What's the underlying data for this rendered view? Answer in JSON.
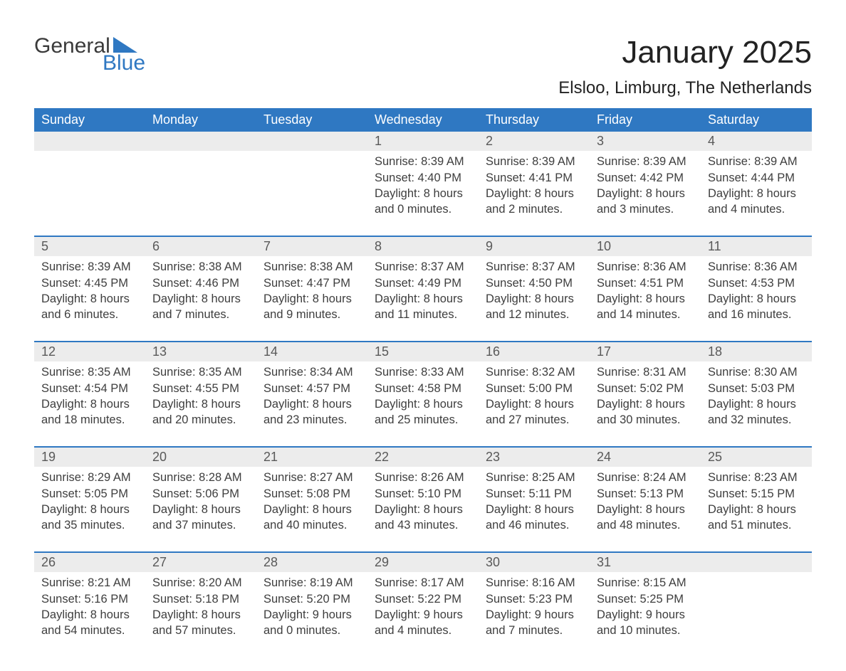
{
  "logo": {
    "word1": "General",
    "word2": "Blue"
  },
  "title": "January 2025",
  "location": "Elsloo, Limburg, The Netherlands",
  "colors": {
    "header_bg": "#2f78c2",
    "header_text": "#ffffff",
    "daynum_bg": "#ececec",
    "daynum_border": "#2f78c2",
    "daynum_text": "#595959",
    "body_text": "#3e3e3e",
    "logo_gray": "#3a3a3a",
    "logo_blue": "#2f78c2",
    "page_bg": "#ffffff"
  },
  "weekdays": [
    "Sunday",
    "Monday",
    "Tuesday",
    "Wednesday",
    "Thursday",
    "Friday",
    "Saturday"
  ],
  "weeks": [
    [
      {
        "n": "",
        "sunrise": "",
        "sunset": "",
        "daylight": ""
      },
      {
        "n": "",
        "sunrise": "",
        "sunset": "",
        "daylight": ""
      },
      {
        "n": "",
        "sunrise": "",
        "sunset": "",
        "daylight": ""
      },
      {
        "n": "1",
        "sunrise": "Sunrise: 8:39 AM",
        "sunset": "Sunset: 4:40 PM",
        "daylight": "Daylight: 8 hours and 0 minutes."
      },
      {
        "n": "2",
        "sunrise": "Sunrise: 8:39 AM",
        "sunset": "Sunset: 4:41 PM",
        "daylight": "Daylight: 8 hours and 2 minutes."
      },
      {
        "n": "3",
        "sunrise": "Sunrise: 8:39 AM",
        "sunset": "Sunset: 4:42 PM",
        "daylight": "Daylight: 8 hours and 3 minutes."
      },
      {
        "n": "4",
        "sunrise": "Sunrise: 8:39 AM",
        "sunset": "Sunset: 4:44 PM",
        "daylight": "Daylight: 8 hours and 4 minutes."
      }
    ],
    [
      {
        "n": "5",
        "sunrise": "Sunrise: 8:39 AM",
        "sunset": "Sunset: 4:45 PM",
        "daylight": "Daylight: 8 hours and 6 minutes."
      },
      {
        "n": "6",
        "sunrise": "Sunrise: 8:38 AM",
        "sunset": "Sunset: 4:46 PM",
        "daylight": "Daylight: 8 hours and 7 minutes."
      },
      {
        "n": "7",
        "sunrise": "Sunrise: 8:38 AM",
        "sunset": "Sunset: 4:47 PM",
        "daylight": "Daylight: 8 hours and 9 minutes."
      },
      {
        "n": "8",
        "sunrise": "Sunrise: 8:37 AM",
        "sunset": "Sunset: 4:49 PM",
        "daylight": "Daylight: 8 hours and 11 minutes."
      },
      {
        "n": "9",
        "sunrise": "Sunrise: 8:37 AM",
        "sunset": "Sunset: 4:50 PM",
        "daylight": "Daylight: 8 hours and 12 minutes."
      },
      {
        "n": "10",
        "sunrise": "Sunrise: 8:36 AM",
        "sunset": "Sunset: 4:51 PM",
        "daylight": "Daylight: 8 hours and 14 minutes."
      },
      {
        "n": "11",
        "sunrise": "Sunrise: 8:36 AM",
        "sunset": "Sunset: 4:53 PM",
        "daylight": "Daylight: 8 hours and 16 minutes."
      }
    ],
    [
      {
        "n": "12",
        "sunrise": "Sunrise: 8:35 AM",
        "sunset": "Sunset: 4:54 PM",
        "daylight": "Daylight: 8 hours and 18 minutes."
      },
      {
        "n": "13",
        "sunrise": "Sunrise: 8:35 AM",
        "sunset": "Sunset: 4:55 PM",
        "daylight": "Daylight: 8 hours and 20 minutes."
      },
      {
        "n": "14",
        "sunrise": "Sunrise: 8:34 AM",
        "sunset": "Sunset: 4:57 PM",
        "daylight": "Daylight: 8 hours and 23 minutes."
      },
      {
        "n": "15",
        "sunrise": "Sunrise: 8:33 AM",
        "sunset": "Sunset: 4:58 PM",
        "daylight": "Daylight: 8 hours and 25 minutes."
      },
      {
        "n": "16",
        "sunrise": "Sunrise: 8:32 AM",
        "sunset": "Sunset: 5:00 PM",
        "daylight": "Daylight: 8 hours and 27 minutes."
      },
      {
        "n": "17",
        "sunrise": "Sunrise: 8:31 AM",
        "sunset": "Sunset: 5:02 PM",
        "daylight": "Daylight: 8 hours and 30 minutes."
      },
      {
        "n": "18",
        "sunrise": "Sunrise: 8:30 AM",
        "sunset": "Sunset: 5:03 PM",
        "daylight": "Daylight: 8 hours and 32 minutes."
      }
    ],
    [
      {
        "n": "19",
        "sunrise": "Sunrise: 8:29 AM",
        "sunset": "Sunset: 5:05 PM",
        "daylight": "Daylight: 8 hours and 35 minutes."
      },
      {
        "n": "20",
        "sunrise": "Sunrise: 8:28 AM",
        "sunset": "Sunset: 5:06 PM",
        "daylight": "Daylight: 8 hours and 37 minutes."
      },
      {
        "n": "21",
        "sunrise": "Sunrise: 8:27 AM",
        "sunset": "Sunset: 5:08 PM",
        "daylight": "Daylight: 8 hours and 40 minutes."
      },
      {
        "n": "22",
        "sunrise": "Sunrise: 8:26 AM",
        "sunset": "Sunset: 5:10 PM",
        "daylight": "Daylight: 8 hours and 43 minutes."
      },
      {
        "n": "23",
        "sunrise": "Sunrise: 8:25 AM",
        "sunset": "Sunset: 5:11 PM",
        "daylight": "Daylight: 8 hours and 46 minutes."
      },
      {
        "n": "24",
        "sunrise": "Sunrise: 8:24 AM",
        "sunset": "Sunset: 5:13 PM",
        "daylight": "Daylight: 8 hours and 48 minutes."
      },
      {
        "n": "25",
        "sunrise": "Sunrise: 8:23 AM",
        "sunset": "Sunset: 5:15 PM",
        "daylight": "Daylight: 8 hours and 51 minutes."
      }
    ],
    [
      {
        "n": "26",
        "sunrise": "Sunrise: 8:21 AM",
        "sunset": "Sunset: 5:16 PM",
        "daylight": "Daylight: 8 hours and 54 minutes."
      },
      {
        "n": "27",
        "sunrise": "Sunrise: 8:20 AM",
        "sunset": "Sunset: 5:18 PM",
        "daylight": "Daylight: 8 hours and 57 minutes."
      },
      {
        "n": "28",
        "sunrise": "Sunrise: 8:19 AM",
        "sunset": "Sunset: 5:20 PM",
        "daylight": "Daylight: 9 hours and 0 minutes."
      },
      {
        "n": "29",
        "sunrise": "Sunrise: 8:17 AM",
        "sunset": "Sunset: 5:22 PM",
        "daylight": "Daylight: 9 hours and 4 minutes."
      },
      {
        "n": "30",
        "sunrise": "Sunrise: 8:16 AM",
        "sunset": "Sunset: 5:23 PM",
        "daylight": "Daylight: 9 hours and 7 minutes."
      },
      {
        "n": "31",
        "sunrise": "Sunrise: 8:15 AM",
        "sunset": "Sunset: 5:25 PM",
        "daylight": "Daylight: 9 hours and 10 minutes."
      },
      {
        "n": "",
        "sunrise": "",
        "sunset": "",
        "daylight": ""
      }
    ]
  ]
}
